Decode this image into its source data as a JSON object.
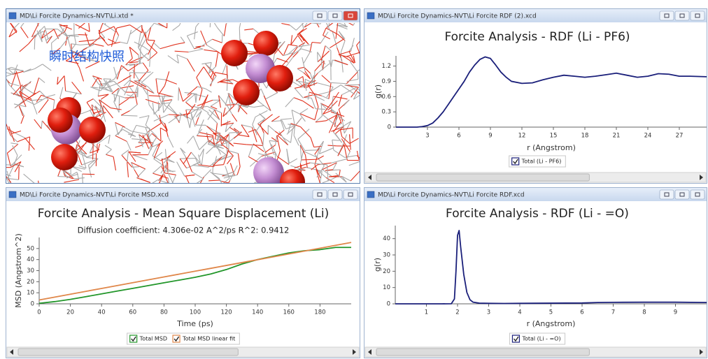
{
  "windows": [
    {
      "title": "MD\\Li Forcite Dynamics-NVT\\Li.xtd *"
    },
    {
      "title": "MD\\Li Forcite Dynamics-NVT\\Li Forcite RDF (2).xcd"
    },
    {
      "title": "MD\\Li Forcite Dynamics-NVT\\Li Forcite MSD.xcd"
    },
    {
      "title": "MD\\Li Forcite Dynamics-NVT\\Li Forcite RDF.xcd"
    }
  ],
  "annotation": "瞬时结构快照",
  "chart_data": [
    {
      "type": "line",
      "title": "Forcite Analysis - RDF (Li - PF6)",
      "x_label": "r (Angstrom)",
      "y_label": "g(r)",
      "x": [
        0,
        1,
        2,
        2.5,
        3,
        3.5,
        4,
        4.5,
        5,
        5.5,
        6,
        6.5,
        7,
        7.5,
        8,
        8.5,
        9,
        9.5,
        10,
        10.5,
        11,
        12,
        13,
        14,
        15,
        16,
        17,
        18,
        19,
        20,
        21,
        22,
        23,
        24,
        25,
        26,
        27,
        28,
        29.6
      ],
      "series": [
        {
          "name": "Total (Li - PF6)",
          "color": "#1a1f7a",
          "values": [
            0,
            0,
            0,
            0.01,
            0.03,
            0.08,
            0.18,
            0.3,
            0.45,
            0.6,
            0.75,
            0.9,
            1.08,
            1.22,
            1.33,
            1.38,
            1.35,
            1.22,
            1.08,
            0.98,
            0.9,
            0.86,
            0.87,
            0.93,
            0.98,
            1.02,
            1.0,
            0.98,
            1.0,
            1.03,
            1.06,
            1.02,
            0.98,
            1.0,
            1.05,
            1.04,
            1.0,
            1.0,
            0.99
          ]
        }
      ],
      "xlim": [
        0,
        29.6
      ],
      "ylim": [
        0,
        1.4
      ],
      "xticks": [
        3,
        6,
        9,
        12,
        15,
        18,
        21,
        24,
        27
      ],
      "yticks": [
        0,
        0.3,
        0.6,
        0.9,
        1.2
      ]
    },
    {
      "type": "line",
      "title": "Forcite Analysis - Mean Square Displacement (Li)",
      "subtitle": "Diffusion coefficient:  4.306e-02  A^2/ps     R^2: 0.9412",
      "x_label": "Time (ps)",
      "y_label": "MSD (Angstrom^2)",
      "x": [
        0,
        10,
        20,
        30,
        40,
        50,
        60,
        70,
        80,
        90,
        100,
        110,
        120,
        130,
        140,
        150,
        160,
        170,
        180,
        190,
        200
      ],
      "series": [
        {
          "name": "Total MSD",
          "color": "#22962a",
          "values": [
            0.5,
            2,
            4,
            6.5,
            9,
            11.5,
            14,
            16.5,
            19,
            21.5,
            24,
            27,
            31,
            36,
            40,
            43,
            46,
            48,
            49,
            51,
            51
          ]
        },
        {
          "name": "Total MSD linear fit",
          "color": "#e0874a",
          "values": [
            3.5,
            6.1,
            8.7,
            11.3,
            13.9,
            16.5,
            19.1,
            21.7,
            24.3,
            26.9,
            29.5,
            32.1,
            34.7,
            37.3,
            39.9,
            42.5,
            45.1,
            47.7,
            50.3,
            52.9,
            55.5
          ]
        }
      ],
      "xlim": [
        0,
        200
      ],
      "ylim": [
        0,
        60
      ],
      "xticks": [
        0,
        20,
        40,
        60,
        80,
        100,
        120,
        140,
        160,
        180
      ],
      "yticks": [
        0,
        10,
        20,
        30,
        40,
        50
      ]
    },
    {
      "type": "line",
      "title": "Forcite Analysis - RDF (Li - =O)",
      "x_label": "r (Angstrom)",
      "y_label": "g(r)",
      "x": [
        0,
        0.5,
        1,
        1.5,
        1.8,
        1.9,
        1.95,
        2.0,
        2.05,
        2.1,
        2.2,
        2.3,
        2.4,
        2.5,
        2.7,
        3,
        3.5,
        4,
        5,
        6,
        6.5,
        7,
        8,
        9,
        10
      ],
      "series": [
        {
          "name": "Total (Li - =O)",
          "color": "#1a1f7a",
          "values": [
            0,
            0,
            0,
            0,
            0.05,
            3,
            20,
            42,
            45,
            35,
            18,
            7,
            2.5,
            1,
            0.4,
            0.3,
            0.2,
            0.3,
            0.4,
            0.5,
            0.8,
            0.9,
            1,
            1,
            0.8
          ]
        }
      ],
      "xlim": [
        0,
        10
      ],
      "ylim": [
        0,
        48
      ],
      "xticks": [
        1,
        2,
        3,
        4,
        5,
        6,
        7,
        8,
        9
      ],
      "yticks": [
        0,
        10,
        20,
        30,
        40
      ]
    }
  ]
}
